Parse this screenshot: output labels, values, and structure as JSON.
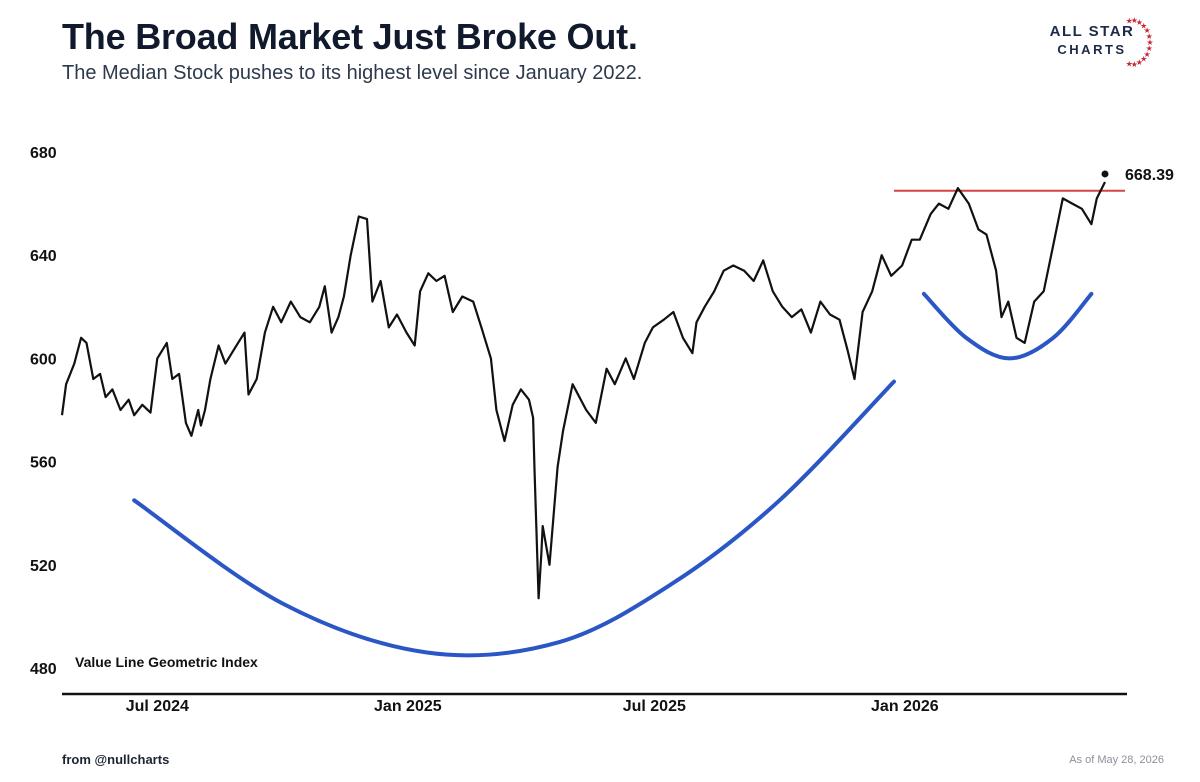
{
  "header": {
    "title": "The Broad Market Just Broke Out.",
    "subtitle": "The Median Stock pushes to its highest level since January 2022."
  },
  "logo": {
    "line1": "ALL STAR",
    "line2": "CHARTS",
    "accent_color": "#c8263a",
    "text_color": "#1c2a4a"
  },
  "footer": {
    "source": "from  @nullcharts",
    "as_of": "As of May 28, 2026"
  },
  "chart_data": {
    "type": "line",
    "title": "The Broad Market Just Broke Out.",
    "subtitle": "The Median Stock pushes to its highest level since January 2022.",
    "series_label": "Value Line Geometric Index",
    "ylim": [
      480,
      680
    ],
    "y_ticks": [
      480,
      520,
      560,
      600,
      640,
      680
    ],
    "xlim": [
      "2024-04-22",
      "2026-05-28"
    ],
    "x_ticks": [
      {
        "date": "2024-07-01",
        "label": "Jul 2024"
      },
      {
        "date": "2025-01-01",
        "label": "Jan 2025"
      },
      {
        "date": "2025-07-01",
        "label": "Jul 2025"
      },
      {
        "date": "2026-01-01",
        "label": "Jan 2026"
      }
    ],
    "grid": false,
    "line_color": "#111111",
    "series": [
      {
        "x": [
          "2024-04-22",
          "2024-04-25",
          "2024-05-01",
          "2024-05-06",
          "2024-05-10",
          "2024-05-15",
          "2024-05-20",
          "2024-05-24",
          "2024-05-29",
          "2024-06-04",
          "2024-06-10",
          "2024-06-14",
          "2024-06-20",
          "2024-06-26",
          "2024-07-01",
          "2024-07-08",
          "2024-07-12",
          "2024-07-17",
          "2024-07-22",
          "2024-07-26",
          "2024-07-31",
          "2024-08-02",
          "2024-08-05",
          "2024-08-09",
          "2024-08-15",
          "2024-08-20",
          "2024-08-27",
          "2024-09-03",
          "2024-09-06",
          "2024-09-12",
          "2024-09-18",
          "2024-09-24",
          "2024-09-30",
          "2024-10-07",
          "2024-10-14",
          "2024-10-21",
          "2024-10-28",
          "2024-11-01",
          "2024-11-06",
          "2024-11-11",
          "2024-11-15",
          "2024-11-20",
          "2024-11-26",
          "2024-12-02",
          "2024-12-06",
          "2024-12-12",
          "2024-12-18",
          "2024-12-24",
          "2024-12-31",
          "2025-01-06",
          "2025-01-10",
          "2025-01-16",
          "2025-01-22",
          "2025-01-28",
          "2025-02-03",
          "2025-02-10",
          "2025-02-18",
          "2025-02-24",
          "2025-03-03",
          "2025-03-07",
          "2025-03-13",
          "2025-03-19",
          "2025-03-25",
          "2025-03-31",
          "2025-04-03",
          "2025-04-04",
          "2025-04-07",
          "2025-04-09",
          "2025-04-10",
          "2025-04-15",
          "2025-04-21",
          "2025-04-25",
          "2025-05-02",
          "2025-05-12",
          "2025-05-19",
          "2025-05-27",
          "2025-06-02",
          "2025-06-10",
          "2025-06-16",
          "2025-06-24",
          "2025-06-30",
          "2025-07-08",
          "2025-07-15",
          "2025-07-22",
          "2025-07-29",
          "2025-08-01",
          "2025-08-07",
          "2025-08-14",
          "2025-08-21",
          "2025-08-28",
          "2025-09-05",
          "2025-09-12",
          "2025-09-19",
          "2025-09-26",
          "2025-10-03",
          "2025-10-10",
          "2025-10-17",
          "2025-10-24",
          "2025-10-31",
          "2025-11-07",
          "2025-11-14",
          "2025-11-20",
          "2025-11-25",
          "2025-12-01",
          "2025-12-08",
          "2025-12-15",
          "2025-12-22",
          "2025-12-30",
          "2026-01-06",
          "2026-01-12",
          "2026-01-20",
          "2026-01-26",
          "2026-02-02",
          "2026-02-09",
          "2026-02-17",
          "2026-02-24",
          "2026-03-02",
          "2026-03-09",
          "2026-03-13",
          "2026-03-18",
          "2026-03-24",
          "2026-03-30",
          "2026-04-06",
          "2026-04-13",
          "2026-04-20",
          "2026-04-27",
          "2026-05-04",
          "2026-05-11",
          "2026-05-18",
          "2026-05-22",
          "2026-05-28"
        ],
        "y": [
          578,
          590,
          598,
          608,
          606,
          592,
          594,
          585,
          588,
          580,
          584,
          578,
          582,
          579,
          600,
          606,
          592,
          594,
          575,
          570,
          580,
          574,
          580,
          592,
          605,
          598,
          604,
          610,
          586,
          592,
          610,
          620,
          614,
          622,
          616,
          614,
          620,
          628,
          610,
          616,
          624,
          640,
          655,
          654,
          622,
          630,
          612,
          617,
          610,
          605,
          626,
          633,
          630,
          632,
          618,
          624,
          622,
          612,
          600,
          580,
          568,
          582,
          588,
          584,
          577,
          557,
          507,
          524,
          535,
          520,
          558,
          572,
          590,
          580,
          575,
          596,
          590,
          600,
          592,
          606,
          612,
          615,
          618,
          608,
          602,
          614,
          620,
          626,
          634,
          636,
          634,
          630,
          638,
          626,
          620,
          616,
          619,
          610,
          622,
          617,
          615,
          603,
          592,
          618,
          626,
          640,
          632,
          636,
          646,
          646,
          656,
          660,
          658,
          666,
          660,
          650,
          648,
          634,
          616,
          622,
          608,
          606,
          622,
          626,
          644,
          662,
          660,
          658,
          652,
          662,
          668.39
        ]
      }
    ],
    "last_value": {
      "x": "2026-05-28",
      "y": 668.39,
      "label": "668.39"
    },
    "annotations": [
      {
        "type": "hline",
        "y": 665,
        "x_start": "2025-12-24",
        "x_end": "2026-05-28",
        "color": "#d64545"
      },
      {
        "type": "arc",
        "color": "#2a56c6",
        "points": [
          [
            "2024-06-14",
            545
          ],
          [
            "2024-10-01",
            505
          ],
          [
            "2025-01-15",
            486
          ],
          [
            "2025-04-22",
            490
          ],
          [
            "2025-07-15",
            513
          ],
          [
            "2025-10-01",
            545
          ],
          [
            "2025-12-24",
            591
          ]
        ]
      },
      {
        "type": "arc",
        "color": "#2a56c6",
        "points": [
          [
            "2026-01-15",
            625
          ],
          [
            "2026-02-15",
            608
          ],
          [
            "2026-03-19",
            600
          ],
          [
            "2026-04-20",
            608
          ],
          [
            "2026-05-18",
            625
          ]
        ]
      }
    ]
  }
}
